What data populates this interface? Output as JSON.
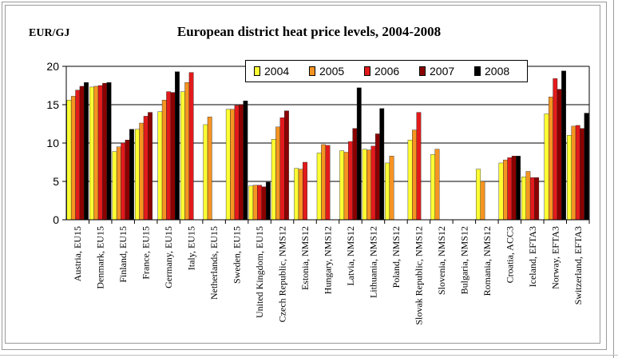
{
  "chart_data": {
    "type": "bar",
    "title": "European district heat price levels, 2004-2008",
    "ylabel": "EUR/GJ",
    "xlabel": "",
    "ylim": [
      0,
      20
    ],
    "yticks": [
      "0",
      "5",
      "10",
      "15",
      "20"
    ],
    "grid": true,
    "legend_position": "top-right",
    "categories": [
      "Austria, EU15",
      "Denmark, EU15",
      "Finland, EU15",
      "France, EU15",
      "Germany, EU15",
      "Italy, EU15",
      "Netherlands, EU15",
      "Sweden, EU15",
      "United Kingdom, EU15",
      "Czech Republic, NMS12",
      "Estonia, NMS12",
      "Hungary, NMS12",
      "Latvia, NMS12",
      "Lithuania, NMS12",
      "Poland, NMS12",
      "Slovak Republic, NMS12",
      "Slovenia, NMS12",
      "Bulgaria, NMS12",
      "Romania, NMS12",
      "Croatia, ACC3",
      "Iceland, EFTA3",
      "Norway, EFTA3",
      "Switzerland, EFTA3"
    ],
    "series": [
      {
        "name": "2004",
        "color": "#ffff33",
        "values": [
          15.6,
          17.3,
          8.9,
          11.8,
          14.1,
          16.7,
          12.4,
          14.4,
          4.4,
          10.5,
          6.7,
          8.7,
          9.0,
          9.2,
          7.4,
          10.4,
          8.5,
          null,
          6.6,
          7.4,
          5.6,
          13.8,
          11.0
        ]
      },
      {
        "name": "2005",
        "color": "#f59422",
        "values": [
          16.1,
          17.4,
          9.5,
          12.6,
          15.6,
          17.9,
          13.4,
          14.4,
          4.5,
          12.1,
          6.6,
          9.8,
          8.8,
          9.1,
          8.3,
          11.7,
          9.2,
          null,
          5.0,
          7.8,
          6.3,
          16.0,
          12.2
        ]
      },
      {
        "name": "2006",
        "color": "#e31a1c",
        "values": [
          16.9,
          17.5,
          10.0,
          13.5,
          16.7,
          19.2,
          null,
          14.9,
          4.5,
          13.3,
          7.5,
          9.7,
          10.2,
          9.6,
          null,
          14.0,
          null,
          null,
          null,
          8.1,
          5.5,
          18.4,
          12.3
        ]
      },
      {
        "name": "2007",
        "color": "#8b0000",
        "values": [
          17.4,
          17.8,
          10.4,
          14.0,
          16.6,
          null,
          null,
          15.0,
          4.3,
          14.2,
          null,
          null,
          11.9,
          11.2,
          null,
          null,
          null,
          null,
          null,
          8.3,
          5.5,
          17.0,
          11.9
        ]
      },
      {
        "name": "2008",
        "color": "#000000",
        "values": [
          17.9,
          17.9,
          11.8,
          null,
          19.3,
          null,
          null,
          15.5,
          4.9,
          null,
          null,
          null,
          17.2,
          14.5,
          null,
          null,
          null,
          null,
          null,
          8.3,
          null,
          19.4,
          13.9
        ]
      }
    ]
  }
}
